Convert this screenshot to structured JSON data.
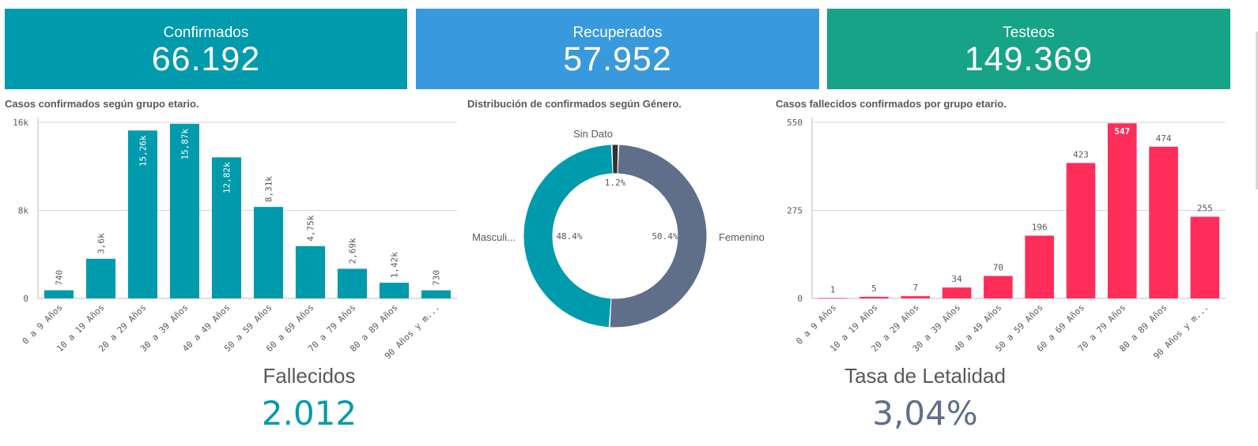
{
  "kpis": [
    {
      "title": "Confirmados",
      "value": "66.192",
      "color": "#009aad"
    },
    {
      "title": "Recuperados",
      "value": "57.952",
      "color": "#3899dc"
    },
    {
      "title": "Testeos",
      "value": "149.369",
      "color": "#17a387"
    }
  ],
  "colors": {
    "teal": "#009aad",
    "slate": "#5f6f8a",
    "pink": "#ff2d5a",
    "gridline": "#d6d6d6",
    "text": "#595959"
  },
  "chart_data": [
    {
      "type": "bar",
      "title": "Casos confirmados según grupo etario.",
      "categories": [
        "0 a 9 Años",
        "10 a 19 Años",
        "20 a 29 Años",
        "30 a 39 Años",
        "40 a 49 Años",
        "50 a 59 Años",
        "60 a 69 Años",
        "70 a 79 Años",
        "80 a 89 Años",
        "90 Años y m..."
      ],
      "values": [
        740,
        3600,
        15260,
        15870,
        12820,
        8310,
        4750,
        2690,
        1420,
        730
      ],
      "data_labels": [
        "740",
        "3,6k",
        "15,26k",
        "15,87k",
        "12,82k",
        "8,31k",
        "4,75k",
        "2,69k",
        "1,42k",
        "730"
      ],
      "ylim": [
        0,
        16000
      ],
      "yticks": [
        0,
        8000,
        16000
      ],
      "ytick_labels": [
        "0",
        "8k",
        "16k"
      ],
      "grid": true,
      "color": "#009aad"
    },
    {
      "type": "pie",
      "title": "Distribución de confirmados según Género.",
      "slices": [
        {
          "label": "Femenino",
          "value": 50.4,
          "pct_label": "50.4%",
          "color": "#5f6f8a"
        },
        {
          "label": "Masculi...",
          "value": 48.4,
          "pct_label": "48.4%",
          "color": "#009aad"
        },
        {
          "label": "Sin Dato",
          "value": 1.2,
          "pct_label": "1.2%",
          "color": "#333333"
        }
      ]
    },
    {
      "type": "bar",
      "title": "Casos fallecidos confirmados por grupo etario.",
      "categories": [
        "0 a 9 Años",
        "10 a 19 Años",
        "20 a 29 Años",
        "30 a 39 Años",
        "40 a 49 Años",
        "50 a 59 Años",
        "60 a 69 Años",
        "70 a 79 Años",
        "80 a 89 Años",
        "90 Años y m..."
      ],
      "values": [
        1,
        5,
        7,
        34,
        70,
        196,
        423,
        547,
        474,
        255
      ],
      "data_labels": [
        "1",
        "5",
        "7",
        "34",
        "70",
        "196",
        "423",
        "547",
        "474",
        "255"
      ],
      "ylim": [
        0,
        550
      ],
      "yticks": [
        0,
        275,
        550
      ],
      "ytick_labels": [
        "0",
        "275",
        "550"
      ],
      "grid": true,
      "color": "#ff2d5a"
    }
  ],
  "bottom": {
    "fallecidos_label": "Fallecidos",
    "fallecidos_value": "2.012",
    "letalidad_label": "Tasa de Letalidad",
    "letalidad_value": "3,04%"
  }
}
